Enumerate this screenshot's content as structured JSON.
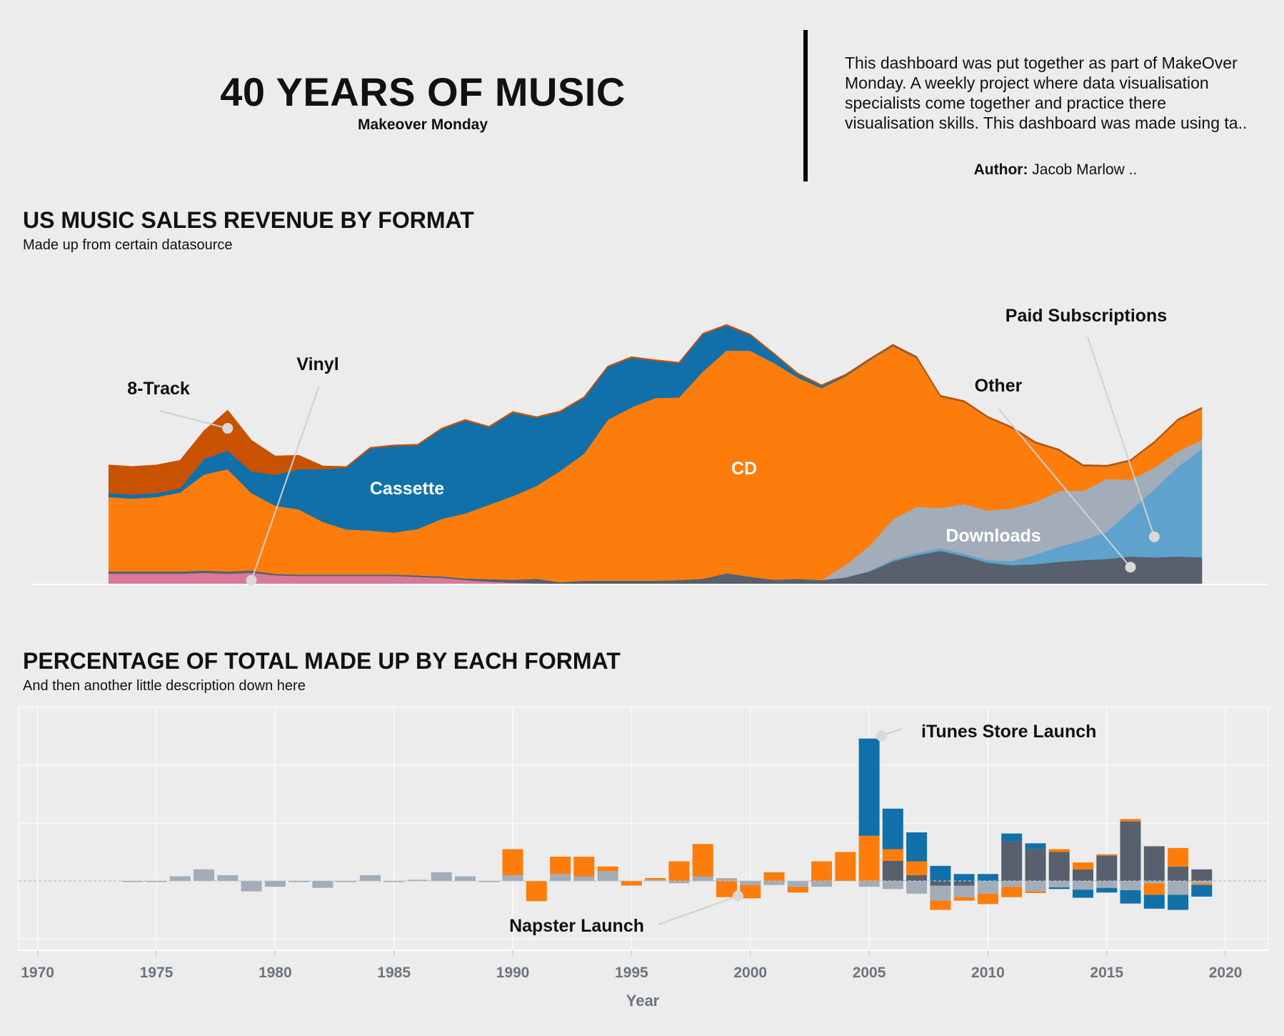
{
  "header": {
    "title": "40 YEARS OF MUSIC",
    "subtitle": "Makeover Monday",
    "blurb_lines": [
      "This dashboard was put together as part of MakeOver",
      "Monday. A weekly project where data visualisation",
      "specialists come together and practice there",
      "visualisation skills. This dashboard was made using ta.."
    ],
    "author_label": "Author:",
    "author_name": "Jacob Marlow .."
  },
  "colors": {
    "background": "#ececec",
    "eight_track": "#c85200",
    "cd": "#fc7d0b",
    "cassette": "#1170aa",
    "vinyl": "#d8799a",
    "other": "#57606c",
    "downloads": "#a3acb9",
    "paid_subscriptions": "#5fa2ce"
  },
  "chart_data": [
    {
      "type": "area",
      "stacked": true,
      "title": "US MUSIC SALES REVENUE BY FORMAT",
      "subtitle": "Made up from certain datasource",
      "x": [
        1973,
        1974,
        1975,
        1976,
        1977,
        1978,
        1979,
        1980,
        1981,
        1982,
        1983,
        1984,
        1985,
        1986,
        1987,
        1988,
        1989,
        1990,
        1991,
        1992,
        1993,
        1994,
        1995,
        1996,
        1997,
        1998,
        1999,
        2000,
        2001,
        2002,
        2003,
        2004,
        2005,
        2006,
        2007,
        2008,
        2009,
        2010,
        2011,
        2012,
        2013,
        2014,
        2015,
        2016,
        2017,
        2018,
        2019
      ],
      "ylim": [
        0,
        100
      ],
      "series": [
        {
          "name": "Vinyl",
          "color_key": "vinyl",
          "values": [
            3.5,
            3.5,
            3.5,
            3.5,
            3.8,
            3.5,
            3.8,
            3,
            2.8,
            2.8,
            2.8,
            2.8,
            2.8,
            2.5,
            2.2,
            1.5,
            1,
            0.6,
            0.4,
            0.3,
            0.3,
            0.3,
            0.3,
            0.3,
            0.3,
            0.3,
            0.3,
            0.3,
            0.3,
            0.3,
            0.3,
            0.3,
            0.3,
            0.3,
            0.3,
            0.3,
            0.3,
            0.3,
            0.3,
            0.3,
            0.3,
            0.3,
            0.3,
            0.3,
            0.3,
            0.3,
            0.3
          ]
        },
        {
          "name": "Other",
          "color_key": "other",
          "values": [
            0.8,
            0.8,
            0.8,
            0.8,
            0.8,
            0.8,
            0.8,
            0.5,
            0.5,
            0.5,
            0.5,
            0.5,
            0.5,
            0.5,
            0.5,
            0.5,
            0.8,
            1,
            1.5,
            0.5,
            1,
            1,
            1,
            1,
            1.2,
            1.6,
            3.4,
            2.3,
            1.3,
            1.6,
            1.2,
            2,
            3.9,
            7.2,
            9.2,
            10.6,
            8.9,
            6.8,
            6,
            6.3,
            7.1,
            7.6,
            8,
            8.8,
            8.5,
            8.8,
            8.5
          ]
        },
        {
          "name": "Paid Subscriptions",
          "color_key": "paid_subscriptions",
          "values": [
            0,
            0,
            0,
            0,
            0,
            0,
            0,
            0,
            0,
            0,
            0,
            0,
            0,
            0,
            0,
            0,
            0,
            0,
            0,
            0,
            0,
            0,
            0,
            0,
            0,
            0,
            0,
            0,
            0,
            0,
            0,
            0,
            0.2,
            0.6,
            0.7,
            0.8,
            0.8,
            0.8,
            1.3,
            3.1,
            4.9,
            6.4,
            8.8,
            14.8,
            22,
            29,
            35
          ]
        },
        {
          "name": "Downloads",
          "color_key": "downloads",
          "values": [
            0,
            0,
            0,
            0,
            0,
            0,
            0,
            0,
            0,
            0,
            0,
            0,
            0,
            0,
            0,
            0,
            0,
            0,
            0,
            0,
            0,
            0,
            0,
            0,
            0,
            0,
            0,
            0,
            0,
            0,
            0,
            4,
            8,
            13,
            15,
            13,
            16,
            16,
            17,
            17,
            18,
            16,
            17,
            10,
            7,
            5,
            3
          ]
        },
        {
          "name": "CD",
          "color_key": "cd",
          "values": [
            24,
            23.5,
            24,
            25.5,
            31,
            33,
            25,
            22,
            21,
            17,
            14.5,
            14.2,
            13.5,
            15,
            18.5,
            21,
            24,
            27,
            30,
            36,
            41,
            52,
            56,
            59,
            59,
            67,
            72,
            73,
            70,
            65,
            62,
            61,
            60,
            56,
            48,
            36,
            33,
            30,
            26,
            19,
            13,
            8,
            4,
            6,
            8,
            10,
            10
          ]
        },
        {
          "name": "Cassette",
          "color_key": "cassette",
          "values": [
            1.3,
            1.3,
            1.3,
            1.3,
            5,
            6,
            7,
            10,
            13,
            17,
            20,
            26.5,
            28,
            27,
            29,
            30,
            25,
            27,
            22,
            19,
            18,
            17,
            16,
            12,
            11,
            12,
            8,
            5,
            2.8,
            1.1,
            0.7,
            0.3,
            0.2,
            0.2,
            0.2,
            0.1,
            0.1,
            0.1,
            0.1,
            0.1,
            0.1,
            0.1,
            0.1,
            0.1,
            0.1,
            0.1,
            0.1
          ]
        },
        {
          "name": "8-Track",
          "color_key": "eight_track",
          "values": [
            9,
            9,
            9,
            9,
            9,
            13,
            10,
            6,
            4.4,
            1,
            0.3,
            0.3,
            0.3,
            0.3,
            0.3,
            0.3,
            0.3,
            0.3,
            0.3,
            0.3,
            0.3,
            0.3,
            0.3,
            0.3,
            0.3,
            0.3,
            0.3,
            0.3,
            0.3,
            0.3,
            0.3,
            0.3,
            0.3,
            0.3,
            0.3,
            0.3,
            0.3,
            0.3,
            0.3,
            0.3,
            0.3,
            0.3,
            0.3,
            0.3,
            0.3,
            0.3,
            0.3
          ]
        }
      ],
      "labels": {
        "cd": "CD",
        "cassette": "Cassette",
        "downloads": "Downloads",
        "eight_track": "8-Track",
        "vinyl": "Vinyl",
        "other": "Other",
        "paid_subscriptions": "Paid Subscriptions"
      }
    },
    {
      "type": "bar",
      "stacked": true,
      "diverging": true,
      "title": "PERCENTAGE OF TOTAL MADE UP BY EACH FORMAT",
      "subtitle": "And then another little description down here",
      "xlabel": "Year",
      "xlim": [
        1969.2,
        2021.8
      ],
      "xticks": [
        "1970",
        "1975",
        "1980",
        "1985",
        "1990",
        "1995",
        "2000",
        "2005",
        "2010",
        "2015",
        "2020"
      ],
      "ylim": [
        -12.5,
        30
      ],
      "gridlines": [
        -10,
        10,
        20,
        30
      ],
      "bars": [
        {
          "year": 1974,
          "seg": [
            [
              "downloads",
              -0.2
            ]
          ]
        },
        {
          "year": 1975,
          "seg": [
            [
              "downloads",
              -0.2
            ]
          ]
        },
        {
          "year": 1976,
          "seg": [
            [
              "downloads",
              0.8
            ]
          ]
        },
        {
          "year": 1977,
          "seg": [
            [
              "downloads",
              2
            ]
          ]
        },
        {
          "year": 1978,
          "seg": [
            [
              "downloads",
              1
            ]
          ]
        },
        {
          "year": 1979,
          "seg": [
            [
              "downloads",
              -1.8
            ]
          ]
        },
        {
          "year": 1980,
          "seg": [
            [
              "downloads",
              -1
            ]
          ]
        },
        {
          "year": 1981,
          "seg": [
            [
              "downloads",
              -0.2
            ]
          ]
        },
        {
          "year": 1982,
          "seg": [
            [
              "downloads",
              -1.2
            ]
          ]
        },
        {
          "year": 1983,
          "seg": [
            [
              "downloads",
              -0.2
            ]
          ]
        },
        {
          "year": 1984,
          "seg": [
            [
              "downloads",
              1
            ]
          ]
        },
        {
          "year": 1985,
          "seg": [
            [
              "downloads",
              -0.2
            ]
          ]
        },
        {
          "year": 1986,
          "seg": [
            [
              "downloads",
              0.2
            ]
          ]
        },
        {
          "year": 1987,
          "seg": [
            [
              "downloads",
              1.5
            ]
          ]
        },
        {
          "year": 1988,
          "seg": [
            [
              "downloads",
              0.8
            ]
          ]
        },
        {
          "year": 1989,
          "seg": [
            [
              "downloads",
              -0.2
            ]
          ]
        },
        {
          "year": 1990,
          "seg": [
            [
              "downloads",
              1
            ],
            [
              "cd",
              4.5
            ]
          ]
        },
        {
          "year": 1991,
          "seg": [
            [
              "cd",
              -3.5
            ]
          ]
        },
        {
          "year": 1992,
          "seg": [
            [
              "downloads",
              1.2
            ],
            [
              "cd",
              3
            ]
          ]
        },
        {
          "year": 1993,
          "seg": [
            [
              "downloads",
              0.8
            ],
            [
              "cd",
              3.4
            ]
          ]
        },
        {
          "year": 1994,
          "seg": [
            [
              "downloads",
              1.7
            ],
            [
              "cd",
              0.8
            ]
          ]
        },
        {
          "year": 1995,
          "seg": [
            [
              "cd",
              -0.8
            ]
          ]
        },
        {
          "year": 1996,
          "seg": [
            [
              "downloads",
              0.2
            ],
            [
              "cd",
              0.3
            ]
          ]
        },
        {
          "year": 1997,
          "seg": [
            [
              "downloads",
              -0.4
            ],
            [
              "cd",
              3.4
            ]
          ]
        },
        {
          "year": 1998,
          "seg": [
            [
              "downloads",
              0.8
            ],
            [
              "cd",
              5.6
            ]
          ]
        },
        {
          "year": 1999,
          "seg": [
            [
              "downloads",
              0.5
            ],
            [
              "cd",
              -2.8
            ]
          ]
        },
        {
          "year": 2000,
          "seg": [
            [
              "downloads",
              -0.7
            ],
            [
              "cd",
              -2.3
            ]
          ]
        },
        {
          "year": 2001,
          "seg": [
            [
              "downloads",
              -0.7
            ],
            [
              "cd",
              1.5
            ]
          ]
        },
        {
          "year": 2002,
          "seg": [
            [
              "downloads",
              -1
            ],
            [
              "cd",
              -1
            ]
          ]
        },
        {
          "year": 2003,
          "seg": [
            [
              "downloads",
              -1
            ],
            [
              "cd",
              3.4
            ]
          ]
        },
        {
          "year": 2004,
          "seg": [
            [
              "cd",
              5
            ]
          ]
        },
        {
          "year": 2005,
          "seg": [
            [
              "downloads",
              -1
            ],
            [
              "cd",
              7.8
            ],
            [
              "cassette",
              16.8
            ]
          ]
        },
        {
          "year": 2006,
          "seg": [
            [
              "other",
              3.5
            ],
            [
              "downloads",
              -1.4
            ],
            [
              "cd",
              2
            ],
            [
              "cassette",
              7
            ]
          ]
        },
        {
          "year": 2007,
          "seg": [
            [
              "other",
              1
            ],
            [
              "downloads",
              -2.2
            ],
            [
              "cd",
              2.4
            ],
            [
              "cassette",
              5
            ]
          ]
        },
        {
          "year": 2008,
          "seg": [
            [
              "other",
              -0.8
            ],
            [
              "downloads",
              -2.6
            ],
            [
              "cd",
              -1.6
            ],
            [
              "cassette",
              2.6
            ]
          ]
        },
        {
          "year": 2009,
          "seg": [
            [
              "other",
              -0.8
            ],
            [
              "downloads",
              -2
            ],
            [
              "cd",
              -0.6
            ],
            [
              "cassette",
              1.2
            ]
          ]
        },
        {
          "year": 2010,
          "seg": [
            [
              "downloads",
              -2.2
            ],
            [
              "cd",
              -1.8
            ],
            [
              "cassette",
              1.2
            ]
          ]
        },
        {
          "year": 2011,
          "seg": [
            [
              "other",
              6.8
            ],
            [
              "downloads",
              -1
            ],
            [
              "cd",
              -1.8
            ],
            [
              "cassette",
              1.4
            ]
          ]
        },
        {
          "year": 2012,
          "seg": [
            [
              "other",
              5.5
            ],
            [
              "downloads",
              -1.8
            ],
            [
              "cd",
              -0.3
            ],
            [
              "cassette",
              1
            ]
          ]
        },
        {
          "year": 2013,
          "seg": [
            [
              "other",
              5
            ],
            [
              "downloads",
              -1.1
            ],
            [
              "cd",
              0.5
            ],
            [
              "cassette",
              -0.3
            ]
          ]
        },
        {
          "year": 2014,
          "seg": [
            [
              "other",
              2
            ],
            [
              "downloads",
              -1.5
            ],
            [
              "cd",
              1.2
            ],
            [
              "cassette",
              -1.4
            ]
          ]
        },
        {
          "year": 2015,
          "seg": [
            [
              "other",
              4.4
            ],
            [
              "downloads",
              -1.2
            ],
            [
              "cd",
              0.2
            ],
            [
              "cassette",
              -0.8
            ]
          ]
        },
        {
          "year": 2016,
          "seg": [
            [
              "other",
              10.3
            ],
            [
              "downloads",
              -1.6
            ],
            [
              "cd",
              0.4
            ],
            [
              "cassette",
              -2.3
            ]
          ]
        },
        {
          "year": 2017,
          "seg": [
            [
              "other",
              6
            ],
            [
              "downloads",
              -0.4
            ],
            [
              "cd",
              -2
            ],
            [
              "cassette",
              -2.4
            ]
          ]
        },
        {
          "year": 2018,
          "seg": [
            [
              "other",
              2.5
            ],
            [
              "downloads",
              -2.4
            ],
            [
              "cd",
              3.2
            ],
            [
              "cassette",
              -2.6
            ]
          ]
        },
        {
          "year": 2019,
          "seg": [
            [
              "other",
              2
            ],
            [
              "downloads",
              -0.4
            ],
            [
              "cd",
              -0.3
            ],
            [
              "cassette",
              -2
            ]
          ]
        }
      ],
      "annotations": {
        "itunes": "iTunes Store Launch",
        "napster": "Napster Launch"
      }
    }
  ]
}
